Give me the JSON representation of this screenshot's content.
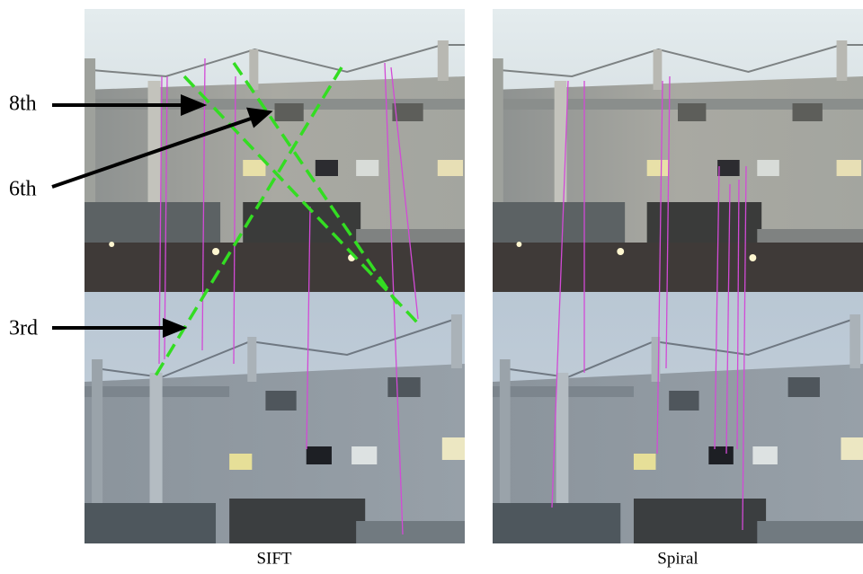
{
  "annotations": [
    "8th",
    "6th",
    "3rd"
  ],
  "panels": [
    {
      "caption": "SIFT"
    },
    {
      "caption": "Spiral"
    }
  ]
}
